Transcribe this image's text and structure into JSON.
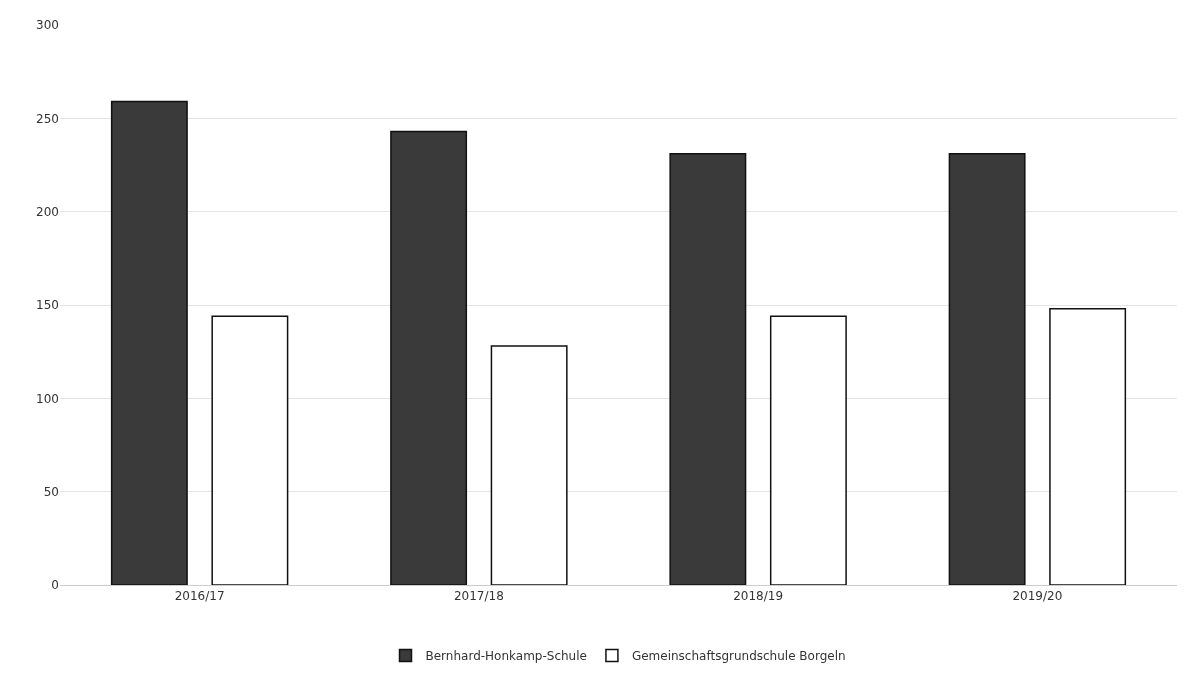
{
  "chart_data": {
    "type": "bar",
    "categories": [
      "2016/17",
      "2017/18",
      "2018/19",
      "2019/20"
    ],
    "series": [
      {
        "name": "Bernhard-Honkamp-Schule",
        "color": "#3a3a3a",
        "values": [
          259,
          243,
          231,
          231
        ]
      },
      {
        "name": "Gemeinschaftsgrundschule Borgeln",
        "color": "#ffffff",
        "values": [
          144,
          128,
          144,
          148
        ]
      }
    ],
    "ylim": [
      0,
      300
    ],
    "yticks": [
      0,
      50,
      100,
      150,
      200,
      250,
      300
    ],
    "grid": "y",
    "legend": "bottom"
  }
}
